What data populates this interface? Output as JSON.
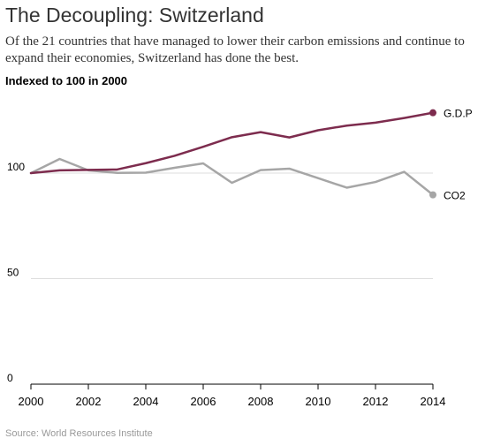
{
  "header": {
    "title": "The Decoupling: Switzerland",
    "subtitle": "Of the 21 countries that have managed to lower their carbon emissions and continue to expand their economies, Switzerland has done the best.",
    "axis_note": "Indexed to 100 in 2000"
  },
  "footer": {
    "source": "Source:  World Resources Institute"
  },
  "colors": {
    "gdp": "#7d2c4e",
    "co2": "#a6a6a6",
    "gridline": "#dddddd",
    "axis": "#000000"
  },
  "chart_data": {
    "type": "line",
    "title": "The Decoupling: Switzerland",
    "ylabel": "Indexed to 100 in 2000",
    "x": [
      2000,
      2001,
      2002,
      2003,
      2004,
      2005,
      2006,
      2007,
      2008,
      2009,
      2010,
      2011,
      2012,
      2013,
      2014
    ],
    "xticks": [
      "2000",
      "2002",
      "2004",
      "2006",
      "2008",
      "2010",
      "2012",
      "2014"
    ],
    "yticks": [
      "0",
      "50",
      "100"
    ],
    "ylim": [
      0,
      136
    ],
    "xlim": [
      2000,
      2014
    ],
    "grid": true,
    "series": [
      {
        "name": "G.D.P",
        "values": [
          100,
          101.3,
          101.5,
          101.7,
          104.7,
          108.2,
          112.5,
          117,
          119.4,
          116.9,
          120.3,
          122.5,
          123.9,
          126.1,
          128.6
        ]
      },
      {
        "name": "CO2",
        "values": [
          100,
          106.7,
          101.3,
          100.1,
          100.2,
          102.5,
          104.6,
          95.4,
          101.4,
          102.1,
          97.6,
          93.1,
          95.8,
          100.6,
          89.7
        ]
      }
    ]
  }
}
